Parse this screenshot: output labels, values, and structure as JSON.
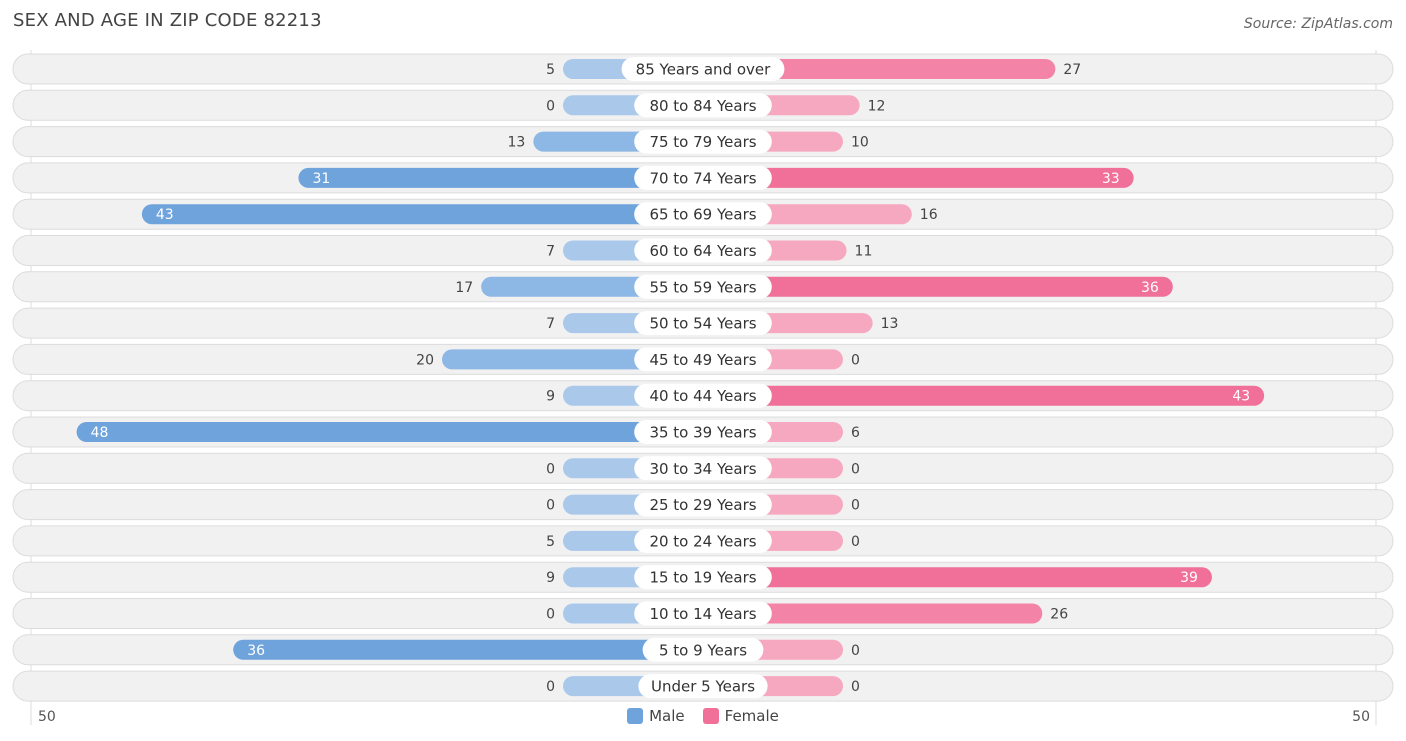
{
  "title": "SEX AND AGE IN ZIP CODE 82213",
  "source": "Source: ZipAtlas.com",
  "legend": {
    "male": "Male",
    "female": "Female"
  },
  "axis": {
    "left_label": "50",
    "right_label": "50"
  },
  "colors": {
    "male": "#6fa3dc",
    "male_light": "#a9c8ea",
    "female": "#f07099",
    "female_light": "#f6a8c0"
  },
  "chart_data": {
    "type": "bar",
    "orientation": "horizontal-diverging",
    "title": "SEX AND AGE IN ZIP CODE 82213",
    "xlim": [
      -50,
      50
    ],
    "categories": [
      "85 Years and over",
      "80 to 84 Years",
      "75 to 79 Years",
      "70 to 74 Years",
      "65 to 69 Years",
      "60 to 64 Years",
      "55 to 59 Years",
      "50 to 54 Years",
      "45 to 49 Years",
      "40 to 44 Years",
      "35 to 39 Years",
      "30 to 34 Years",
      "25 to 29 Years",
      "20 to 24 Years",
      "15 to 19 Years",
      "10 to 14 Years",
      "5 to 9 Years",
      "Under 5 Years"
    ],
    "series": [
      {
        "name": "Male",
        "values": [
          5,
          0,
          13,
          31,
          43,
          7,
          17,
          7,
          20,
          9,
          48,
          0,
          0,
          5,
          9,
          0,
          36,
          0
        ]
      },
      {
        "name": "Female",
        "values": [
          27,
          12,
          10,
          33,
          16,
          11,
          36,
          13,
          0,
          43,
          6,
          0,
          0,
          0,
          39,
          26,
          0,
          0
        ]
      }
    ],
    "legend_position": "bottom-center"
  }
}
